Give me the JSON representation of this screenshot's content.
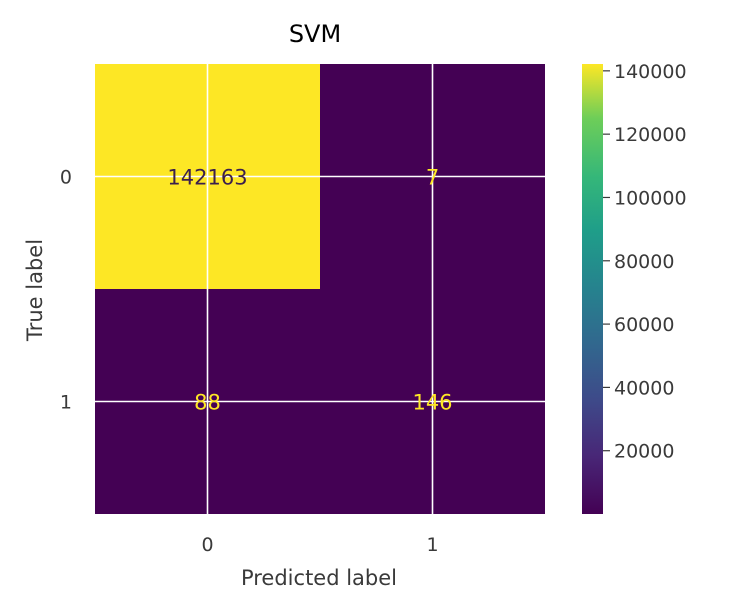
{
  "chart_data": {
    "type": "heatmap",
    "title": "SVM",
    "xlabel": "Predicted label",
    "ylabel": "True label",
    "x_categories": [
      "0",
      "1"
    ],
    "y_categories": [
      "0",
      "1"
    ],
    "matrix": [
      [
        142163,
        7
      ],
      [
        88,
        146
      ]
    ],
    "cell_labels": [
      [
        "142163",
        "7"
      ],
      [
        "88",
        "146"
      ]
    ],
    "colormap": "viridis",
    "color_low": "#440154",
    "color_high": "#fde725",
    "label_on_low": "#fde725",
    "label_on_high": "#3b1f4d",
    "colorbar": {
      "ticks": [
        20000,
        40000,
        60000,
        80000,
        100000,
        120000,
        140000
      ],
      "tick_labels": [
        "20000",
        "40000",
        "60000",
        "80000",
        "100000",
        "120000",
        "140000"
      ],
      "vmin": 7,
      "vmax": 142163
    },
    "grid": true
  }
}
